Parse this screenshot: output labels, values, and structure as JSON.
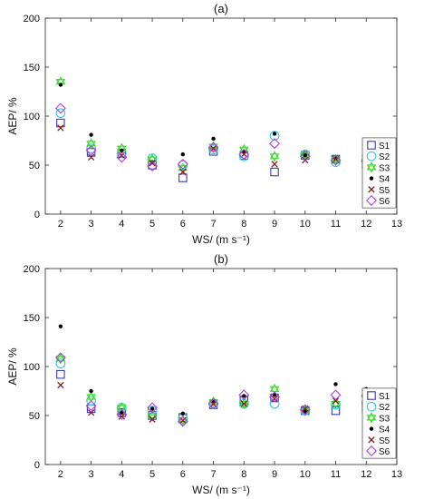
{
  "figure": {
    "y_ticks": [
      "0",
      "50",
      "100",
      "150",
      "200"
    ],
    "x_ticks": [
      "2",
      "3",
      "4",
      "5",
      "6",
      "7",
      "8",
      "9",
      "10",
      "11",
      "12",
      "13"
    ]
  },
  "chart_data": [
    {
      "type": "scatter",
      "title": "(a)",
      "xlabel": "WS/ (m s⁻¹)",
      "ylabel": "AEP/ %",
      "xlim": [
        1.5,
        13
      ],
      "ylim": [
        0,
        200
      ],
      "grid": false,
      "legend": "right",
      "x": [
        2,
        3,
        4,
        5,
        6,
        7,
        8,
        9,
        10,
        11,
        12
      ],
      "series": [
        {
          "name": "S1",
          "marker": "square",
          "color": "#3a3ab5",
          "values": [
            93,
            63,
            62,
            50,
            37,
            64,
            60,
            43,
            60,
            56,
            51
          ]
        },
        {
          "name": "S2",
          "marker": "circle",
          "color": "#2ec8e8",
          "values": [
            103,
            67,
            62,
            57,
            50,
            66,
            59,
            80,
            61,
            53,
            55
          ]
        },
        {
          "name": "S3",
          "marker": "star",
          "color": "#33dd22",
          "values": [
            135,
            72,
            67,
            56,
            47,
            69,
            66,
            59,
            60,
            56,
            57
          ]
        },
        {
          "name": "S4",
          "marker": "dot",
          "color": "#000000",
          "values": [
            132,
            81,
            65,
            53,
            61,
            77,
            64,
            82,
            60,
            57,
            47
          ]
        },
        {
          "name": "S5",
          "marker": "x",
          "color": "#8a1c1c",
          "values": [
            88,
            58,
            60,
            52,
            43,
            67,
            61,
            51,
            55,
            56,
            55
          ]
        },
        {
          "name": "S6",
          "marker": "diamond",
          "color": "#b040e0",
          "values": [
            108,
            65,
            58,
            49,
            51,
            68,
            61,
            72,
            59,
            55,
            54
          ]
        }
      ]
    },
    {
      "type": "scatter",
      "title": "(b)",
      "xlabel": "WS/ (m s⁻¹)",
      "ylabel": "AEP/ %",
      "xlim": [
        1.5,
        13
      ],
      "ylim": [
        0,
        200
      ],
      "grid": false,
      "legend": "right",
      "x": [
        2,
        3,
        4,
        5,
        6,
        7,
        8,
        9,
        10,
        11,
        12
      ],
      "series": [
        {
          "name": "S1",
          "marker": "square",
          "color": "#3a3ab5",
          "values": [
            92,
            57,
            53,
            50,
            48,
            61,
            66,
            68,
            55,
            55,
            57
          ]
        },
        {
          "name": "S2",
          "marker": "circle",
          "color": "#2ec8e8",
          "values": [
            103,
            65,
            58,
            55,
            47,
            62,
            62,
            62,
            55,
            61,
            63
          ]
        },
        {
          "name": "S3",
          "marker": "star",
          "color": "#33dd22",
          "values": [
            108,
            69,
            58,
            50,
            45,
            64,
            62,
            77,
            55,
            62,
            74
          ]
        },
        {
          "name": "S4",
          "marker": "dot",
          "color": "#000000",
          "values": [
            141,
            75,
            53,
            57,
            52,
            65,
            70,
            71,
            54,
            82,
            77
          ]
        },
        {
          "name": "S5",
          "marker": "x",
          "color": "#8a1c1c",
          "values": [
            81,
            53,
            49,
            46,
            45,
            62,
            62,
            67,
            57,
            65,
            62
          ]
        },
        {
          "name": "S6",
          "marker": "diamond",
          "color": "#b040e0",
          "values": [
            109,
            60,
            51,
            58,
            44,
            62,
            71,
            69,
            56,
            71,
            70
          ]
        }
      ]
    }
  ]
}
